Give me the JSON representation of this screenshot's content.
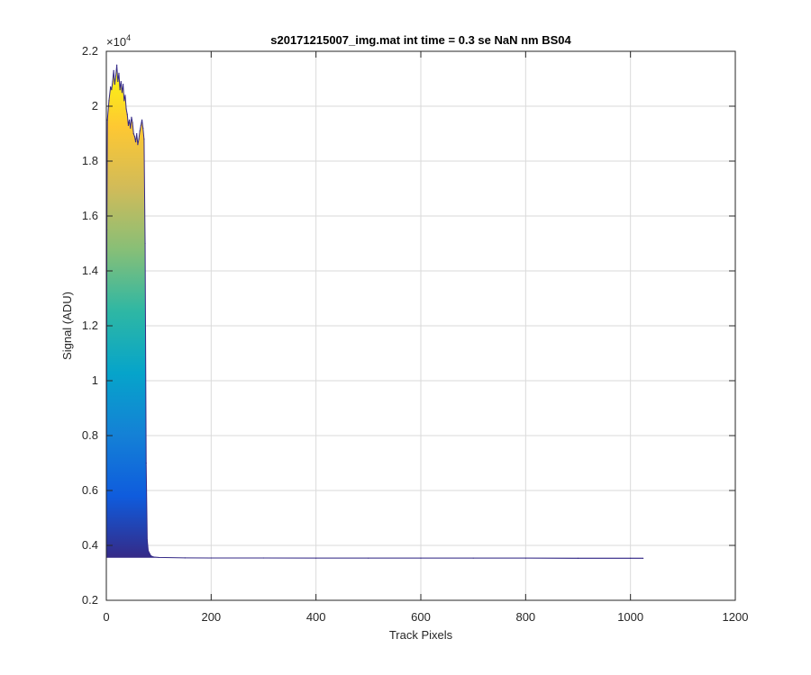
{
  "chart_data": {
    "type": "line",
    "title": "s20171215007_img.mat int time = 0.3 se  NaN nm BS04",
    "xlabel": "Track Pixels",
    "ylabel": "Signal (ADU)",
    "xlim": [
      0,
      1200
    ],
    "ylim": [
      2000,
      22000
    ],
    "xticks": [
      "0",
      "200",
      "400",
      "600",
      "800",
      "1000",
      "1200"
    ],
    "yticks": [
      "0.2",
      "0.4",
      "0.6",
      "0.8",
      "1",
      "1.2",
      "1.4",
      "1.6",
      "1.8",
      "2",
      "2.2"
    ],
    "y_exponent": "×10",
    "y_exponent_power": "4",
    "grid": true,
    "colormap": "parula",
    "colormap_stops": [
      "#352a87",
      "#0f5cdd",
      "#1481d6",
      "#06a4ca",
      "#2eb7a4",
      "#87bf77",
      "#d1bb59",
      "#fec832",
      "#f9fb0e"
    ],
    "baseline_signal": 3550,
    "series": [
      {
        "x": [
          0,
          1,
          2,
          5,
          8,
          10,
          12,
          14,
          16,
          18,
          20,
          22,
          24,
          26,
          28,
          30,
          32,
          34,
          36,
          38,
          40,
          42,
          44,
          46,
          48,
          50,
          52,
          54,
          56,
          58,
          60,
          62,
          64,
          66,
          68,
          70,
          72,
          74,
          76,
          78,
          80,
          85,
          90,
          100,
          150,
          200,
          300,
          400,
          500,
          600,
          700,
          800,
          900,
          1000,
          1024
        ],
        "y": [
          3550,
          15500,
          19500,
          20200,
          20700,
          20600,
          20900,
          21300,
          20800,
          21100,
          21500,
          20900,
          21200,
          20600,
          20900,
          20500,
          20800,
          20200,
          20400,
          19900,
          19700,
          19300,
          19500,
          19200,
          19600,
          19400,
          19000,
          18900,
          18700,
          19000,
          18600,
          18800,
          19100,
          19300,
          19500,
          19200,
          18800,
          15000,
          7000,
          4200,
          3800,
          3620,
          3580,
          3560,
          3545,
          3540,
          3540,
          3535,
          3535,
          3535,
          3535,
          3535,
          3530,
          3530,
          3530
        ]
      }
    ]
  }
}
